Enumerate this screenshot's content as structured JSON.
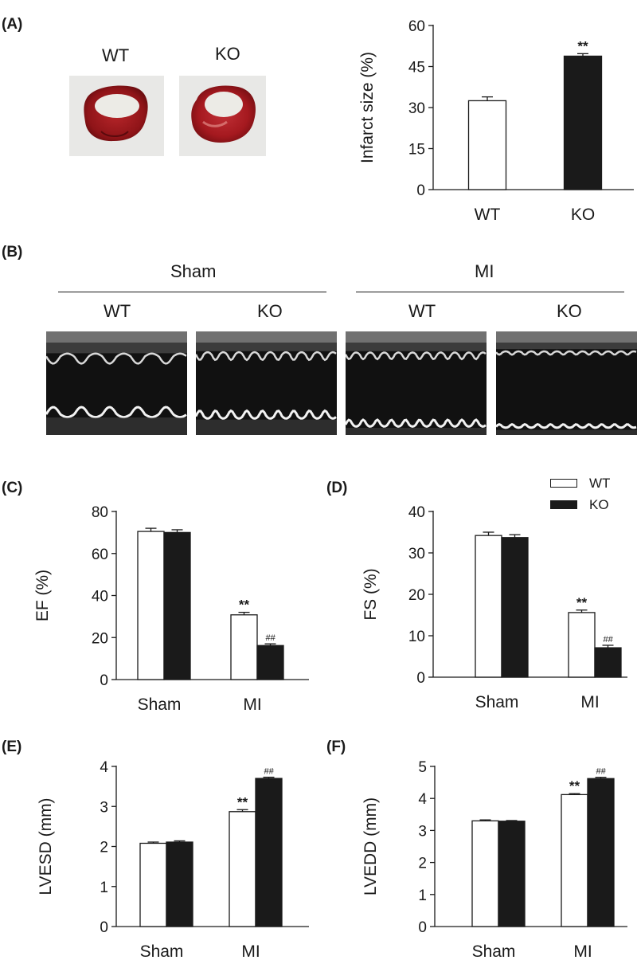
{
  "panels": {
    "A": "(A)",
    "B": "(B)",
    "C": "(C)",
    "D": "(D)",
    "E": "(E)",
    "F": "(F)"
  },
  "photos": {
    "wt_label": "WT",
    "ko_label": "KO"
  },
  "echo": {
    "group_sham": "Sham",
    "group_mi": "MI",
    "labels": [
      "WT",
      "KO",
      "WT",
      "KO"
    ]
  },
  "legend": {
    "wt": "WT",
    "ko": "KO",
    "wt_color": "#ffffff",
    "ko_color": "#1a1a1a"
  },
  "chart_data": [
    {
      "id": "A",
      "type": "bar",
      "categories": [
        "WT",
        "KO"
      ],
      "values": [
        32.5,
        48.8
      ],
      "errors": [
        1.4,
        0.9
      ],
      "fills": [
        "#ffffff",
        "#1a1a1a"
      ],
      "annotations": [
        "",
        "**"
      ],
      "ylabel": "Infarct size (%)",
      "ylim": [
        0,
        60
      ],
      "yticks": [
        0,
        15,
        30,
        45,
        60
      ]
    },
    {
      "id": "C",
      "type": "bar",
      "categories": [
        "Sham",
        "MI"
      ],
      "series": [
        {
          "name": "WT",
          "values": [
            70.5,
            30.8
          ],
          "errors": [
            1.5,
            1.2
          ],
          "annotations": [
            "",
            "**"
          ]
        },
        {
          "name": "KO",
          "values": [
            70.0,
            16.2
          ],
          "errors": [
            1.3,
            0.8
          ],
          "annotations": [
            "",
            "##"
          ]
        }
      ],
      "ylabel": "EF (%)",
      "ylim": [
        0,
        80
      ],
      "yticks": [
        0,
        20,
        40,
        60,
        80
      ]
    },
    {
      "id": "D",
      "type": "bar",
      "categories": [
        "Sham",
        "MI"
      ],
      "series": [
        {
          "name": "WT",
          "values": [
            34.2,
            15.6
          ],
          "errors": [
            0.8,
            0.6
          ],
          "annotations": [
            "",
            "**"
          ]
        },
        {
          "name": "KO",
          "values": [
            33.7,
            7.1
          ],
          "errors": [
            0.7,
            0.6
          ],
          "annotations": [
            "",
            "##"
          ]
        }
      ],
      "ylabel": "FS (%)",
      "ylim": [
        0,
        40
      ],
      "yticks": [
        0,
        10,
        20,
        30,
        40
      ]
    },
    {
      "id": "E",
      "type": "bar",
      "categories": [
        "Sham",
        "MI"
      ],
      "series": [
        {
          "name": "WT",
          "values": [
            2.08,
            2.87
          ],
          "errors": [
            0.03,
            0.05
          ],
          "annotations": [
            "",
            "**"
          ]
        },
        {
          "name": "KO",
          "values": [
            2.11,
            3.7
          ],
          "errors": [
            0.03,
            0.03
          ],
          "annotations": [
            "",
            "##"
          ]
        }
      ],
      "ylabel": "LVESD (mm)",
      "ylim": [
        0,
        4
      ],
      "yticks": [
        0,
        1,
        2,
        3,
        4
      ]
    },
    {
      "id": "F",
      "type": "bar",
      "categories": [
        "Sham",
        "MI"
      ],
      "series": [
        {
          "name": "WT",
          "values": [
            3.3,
            4.12
          ],
          "errors": [
            0.03,
            0.03
          ],
          "annotations": [
            "",
            "**"
          ]
        },
        {
          "name": "KO",
          "values": [
            3.29,
            4.62
          ],
          "errors": [
            0.02,
            0.04
          ],
          "annotations": [
            "",
            "##"
          ]
        }
      ],
      "ylabel": "LVEDD (mm)",
      "ylim": [
        0,
        5
      ],
      "yticks": [
        0,
        1,
        2,
        3,
        4,
        5
      ]
    }
  ]
}
